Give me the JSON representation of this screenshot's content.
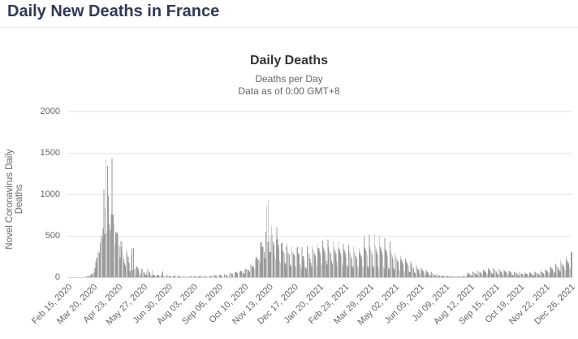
{
  "page": {
    "title": "Daily New Deaths in France"
  },
  "chart": {
    "title": "Daily Deaths",
    "subtitle_line1": "Deaths per Day",
    "subtitle_line2": "Data as of 0:00 GMT+8",
    "y_axis_title": "Novel Coronavirus Daily Deaths"
  },
  "colors": {
    "page_title": "#2e3a59",
    "chart_title": "#333333",
    "subtitle": "#666666",
    "axis_text": "#666666",
    "gridline": "#e6e6e6",
    "axis_line": "#ccd6eb",
    "bar": "#9b9b9b"
  },
  "chart_data": {
    "type": "bar",
    "title": "Daily Deaths",
    "subtitle": [
      "Deaths per Day",
      "Data as of 0:00 GMT+8"
    ],
    "ylabel": "Novel Coronavirus Daily Deaths",
    "xlabel": "",
    "ylim": [
      0,
      2000
    ],
    "yticks": [
      0,
      500,
      1000,
      1500,
      2000
    ],
    "grid": true,
    "legend": "none",
    "bar_color": "#9b9b9b",
    "x_start_date": "Feb 15, 2020",
    "x_end_date": "Dec 28, 2021",
    "x_tick_interval_days": 34,
    "x_tick_labels": [
      "Feb 15, 2020",
      "Mar 20, 2020",
      "Apr 23, 2020",
      "May 27, 2020",
      "Jun 30, 2020",
      "Aug 03, 2020",
      "Sep 06, 2020",
      "Oct 10, 2020",
      "Nov 13, 2020",
      "Dec 17, 2020",
      "Jan 20, 2021",
      "Feb 23, 2021",
      "Mar 29, 2021",
      "May 02, 2021",
      "Jun 05, 2021",
      "Jul 09, 2021",
      "Aug 12, 2021",
      "Sep 15, 2021",
      "Oct 19, 2021",
      "Nov 22, 2021",
      "Dec 26, 2021"
    ],
    "values": [
      0,
      0,
      0,
      0,
      0,
      0,
      0,
      0,
      0,
      0,
      0,
      1,
      0,
      1,
      1,
      0,
      1,
      1,
      1,
      1,
      2,
      3,
      2,
      2,
      3,
      4,
      9,
      12,
      15,
      12,
      21,
      27,
      36,
      45,
      40,
      78,
      56,
      112,
      186,
      240,
      231,
      299,
      319,
      292,
      418,
      499,
      509,
      471,
      588,
      1053,
      518,
      833,
      1417,
      541,
      1341,
      987,
      635,
      561,
      574,
      762,
      1438,
      753,
      761,
      642,
      395,
      547,
      531,
      544,
      516,
      389,
      369,
      242,
      437,
      367,
      427,
      289,
      218,
      166,
      135,
      306,
      330,
      278,
      243,
      178,
      80,
      70,
      263,
      348,
      83,
      351,
      104,
      96,
      35,
      131,
      125,
      110,
      83,
      74,
      35,
      35,
      98,
      110,
      66,
      52,
      57,
      31,
      31,
      57,
      107,
      81,
      46,
      67,
      13,
      29,
      87,
      23,
      27,
      28,
      24,
      9,
      10,
      29,
      23,
      28,
      14,
      7,
      7,
      23,
      57,
      81,
      13,
      21,
      0,
      0,
      30,
      27,
      15,
      18,
      8,
      18,
      0,
      0,
      3,
      14,
      19,
      16,
      12,
      0,
      0,
      13,
      16,
      9,
      11,
      14,
      0,
      0,
      9,
      9,
      5,
      7,
      9,
      0,
      0,
      7,
      15,
      12,
      10,
      13,
      0,
      0,
      5,
      9,
      11,
      12,
      9,
      0,
      0,
      9,
      17,
      14,
      18,
      12,
      0,
      0,
      11,
      14,
      9,
      12,
      10,
      0,
      0,
      15,
      13,
      17,
      15,
      12,
      0,
      0,
      20,
      24,
      22,
      18,
      16,
      0,
      0,
      26,
      30,
      28,
      19,
      20,
      0,
      0,
      33,
      43,
      27,
      26,
      30,
      0,
      0,
      49,
      62,
      43,
      42,
      39,
      0,
      0,
      57,
      63,
      62,
      52,
      49,
      0,
      0,
      69,
      80,
      76,
      63,
      60,
      46,
      44,
      95,
      107,
      104,
      89,
      90,
      85,
      64,
      146,
      163,
      137,
      122,
      137,
      122,
      100,
      222,
      244,
      235,
      210,
      210,
      218,
      170,
      418,
      430,
      363,
      378,
      365,
      306,
      230,
      551,
      854,
      425,
      932,
      430,
      310,
      302,
      506,
      625,
      516,
      425,
      386,
      280,
      214,
      458,
      604,
      467,
      389,
      344,
      198,
      172,
      406,
      414,
      321,
      304,
      284,
      175,
      150,
      370,
      402,
      296,
      292,
      275,
      150,
      132,
      372,
      297,
      289,
      278,
      260,
      131,
      116,
      354,
      367,
      290,
      278,
      156,
      146,
      100,
      364,
      251,
      253,
      198,
      133,
      116,
      99,
      378,
      310,
      283,
      264,
      226,
      171,
      127,
      380,
      345,
      312,
      284,
      262,
      190,
      141,
      404,
      352,
      346,
      308,
      271,
      172,
      145,
      443,
      357,
      325,
      301,
      281,
      195,
      152,
      456,
      370,
      338,
      310,
      290,
      191,
      160,
      438,
      365,
      345,
      312,
      278,
      186,
      140,
      425,
      350,
      328,
      292,
      260,
      160,
      130,
      403,
      331,
      302,
      271,
      240,
      148,
      122,
      380,
      318,
      290,
      262,
      231,
      141,
      120,
      368,
      310,
      280,
      254,
      225,
      138,
      115,
      355,
      302,
      278,
      250,
      222,
      140,
      118,
      496,
      360,
      330,
      300,
      264,
      138,
      115,
      508,
      372,
      340,
      308,
      272,
      135,
      112,
      520,
      380,
      348,
      314,
      276,
      132,
      110,
      500,
      368,
      336,
      304,
      266,
      126,
      105,
      470,
      344,
      314,
      284,
      248,
      118,
      98,
      430,
      314,
      286,
      258,
      226,
      108,
      90,
      288,
      250,
      228,
      206,
      182,
      96,
      80,
      258,
      222,
      200,
      180,
      158,
      84,
      70,
      224,
      190,
      170,
      152,
      132,
      71,
      59,
      188,
      158,
      140,
      124,
      108,
      59,
      48,
      152,
      126,
      111,
      97,
      84,
      47,
      38,
      118,
      96,
      84,
      72,
      62,
      36,
      29,
      88,
      70,
      60,
      51,
      43,
      27,
      21,
      62,
      48,
      41,
      34,
      28,
      19,
      15,
      42,
      32,
      26,
      22,
      18,
      13,
      10,
      27,
      20,
      17,
      14,
      11,
      9,
      7,
      18,
      14,
      11,
      9,
      8,
      7,
      5,
      14,
      10,
      9,
      8,
      7,
      6,
      5,
      13,
      11,
      9,
      9,
      8,
      7,
      6,
      16,
      14,
      12,
      11,
      10,
      20,
      17,
      52,
      44,
      40,
      36,
      32,
      26,
      22,
      68,
      58,
      52,
      47,
      42,
      32,
      27,
      84,
      72,
      64,
      58,
      52,
      38,
      32,
      98,
      84,
      75,
      67,
      60,
      42,
      35,
      108,
      92,
      82,
      74,
      66,
      44,
      37,
      112,
      95,
      85,
      76,
      68,
      41,
      34,
      104,
      88,
      79,
      70,
      63,
      37,
      31,
      94,
      79,
      70,
      63,
      56,
      32,
      27,
      80,
      68,
      60,
      54,
      48,
      28,
      23,
      70,
      59,
      52,
      47,
      42,
      25,
      21,
      62,
      52,
      46,
      41,
      37,
      23,
      19,
      58,
      49,
      44,
      39,
      35,
      24,
      20,
      60,
      51,
      46,
      41,
      37,
      27,
      23,
      68,
      58,
      52,
      47,
      42,
      33,
      28,
      82,
      70,
      63,
      57,
      51,
      41,
      34,
      102,
      87,
      78,
      71,
      64,
      52,
      44,
      130,
      111,
      100,
      91,
      82,
      66,
      56,
      164,
      141,
      127,
      116,
      105,
      82,
      70,
      204,
      175,
      158,
      145,
      131,
      100,
      85,
      246,
      213,
      192,
      176,
      160,
      120,
      102,
      292,
      310
    ]
  }
}
